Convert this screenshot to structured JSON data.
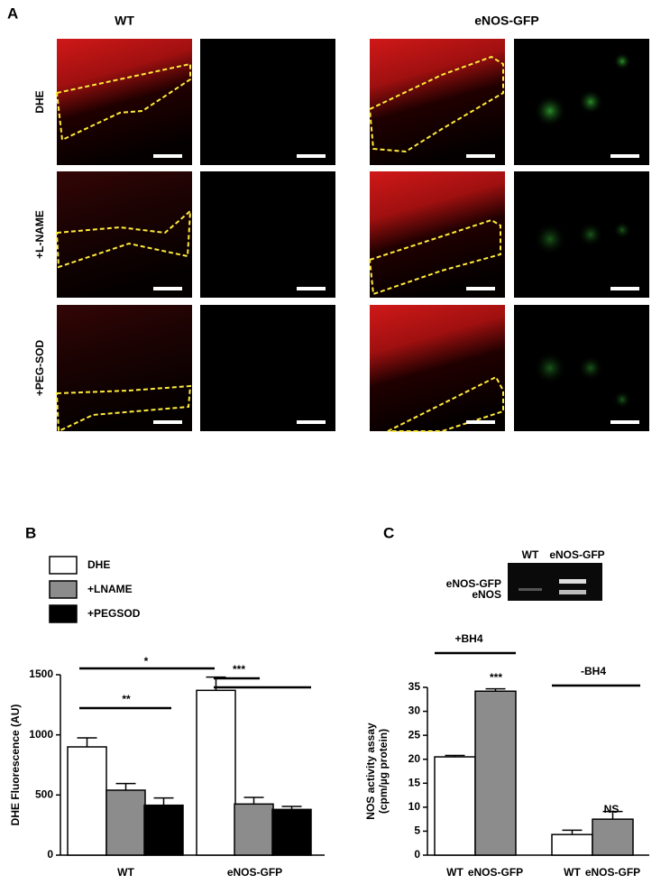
{
  "panel_labels": [
    "A",
    "B",
    "C"
  ],
  "image_panels": {
    "columns": [
      "WT",
      "eNOS-GFP"
    ],
    "rows": [
      "DHE",
      "+L-NAME",
      "+PEG-SOD"
    ]
  },
  "gel": {
    "lanes": [
      "WT",
      "eNOS-GFP"
    ],
    "bands": [
      "eNOS-GFP",
      "eNOS"
    ]
  },
  "chart_data": [
    {
      "type": "bar",
      "ylabel": "DHE Fluorescence (AU)",
      "categories": [
        "WT",
        "eNOS-GFP"
      ],
      "series": [
        {
          "name": "DHE",
          "color": "#ffffff",
          "values": [
            900,
            1370
          ],
          "errors": [
            75,
            110
          ]
        },
        {
          "name": "+LNAME",
          "color": "#8c8c8c",
          "values": [
            540,
            425
          ],
          "errors": [
            55,
            55
          ]
        },
        {
          "name": "+PEGSOD",
          "color": "#000000",
          "values": [
            415,
            380
          ],
          "errors": [
            60,
            25
          ]
        }
      ],
      "ylim": [
        0,
        1500
      ],
      "yticks": [
        0,
        500,
        1000,
        1500
      ],
      "annotations": [
        "*",
        "**",
        "***"
      ]
    },
    {
      "type": "bar",
      "ylabel": [
        "NOS activity assay",
        "(cpm/µg protein)"
      ],
      "categories": [
        "WT",
        "eNOS-GFP",
        "WT",
        "eNOS-GFP"
      ],
      "values": [
        20.5,
        34.2,
        4.3,
        7.5
      ],
      "errors": [
        0.3,
        0.5,
        0.9,
        1.6
      ],
      "colors": [
        "#ffffff",
        "#8c8c8c",
        "#ffffff",
        "#8c8c8c"
      ],
      "ylim": [
        0,
        35
      ],
      "yticks": [
        0,
        5,
        10,
        15,
        20,
        25,
        30,
        35
      ],
      "annotations": [
        "+BH4",
        "***",
        "-BH4",
        "NS"
      ]
    }
  ]
}
